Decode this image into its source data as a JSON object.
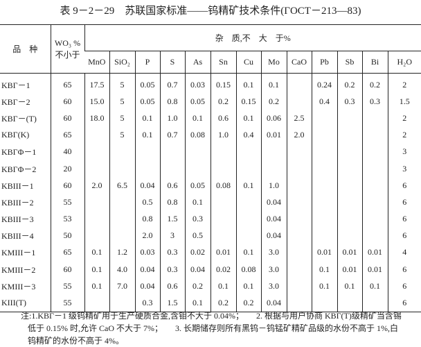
{
  "title": "表 9－2－29　苏联国家标准——钨精矿技术条件(ΓOCT－213—83)",
  "headers": {
    "variety": "品　种",
    "wo3_line1": "WO₃ %",
    "wo3_line2": "不小于",
    "impurities": "杂　质,不　大　于%",
    "columns": [
      "MnO",
      "SiO₂",
      "P",
      "S",
      "As",
      "Sn",
      "Cu",
      "Mo",
      "CaO",
      "Pb",
      "Sb",
      "Bi",
      "H₂O"
    ]
  },
  "rows": [
    {
      "name": "KBΓ－1",
      "wo3": "65",
      "v": [
        "17.5",
        "5",
        "0.05",
        "0.7",
        "0.03",
        "0.15",
        "0.1",
        "0.1",
        "",
        "0.24",
        "0.2",
        "0.2",
        "2"
      ]
    },
    {
      "name": "KBΓ－2",
      "wo3": "60",
      "v": [
        "15.0",
        "5",
        "0.05",
        "0.8",
        "0.05",
        "0.2",
        "0.15",
        "0.2",
        "",
        "0.4",
        "0.3",
        "0.3",
        "1.5"
      ]
    },
    {
      "name": "KBΓ－(T)",
      "wo3": "60",
      "v": [
        "18.0",
        "5",
        "0.1",
        "1.0",
        "0.1",
        "0.6",
        "0.1",
        "0.06",
        "2.5",
        "",
        "",
        "",
        "2"
      ]
    },
    {
      "name": "KBΓ(K)",
      "wo3": "65",
      "v": [
        "",
        "5",
        "0.1",
        "0.7",
        "0.08",
        "1.0",
        "0.4",
        "0.01",
        "2.0",
        "",
        "",
        "",
        "2"
      ]
    },
    {
      "name": "KBΓΦ－1",
      "wo3": "40",
      "v": [
        "",
        "",
        "",
        "",
        "",
        "",
        "",
        "",
        "",
        "",
        "",
        "",
        "3"
      ]
    },
    {
      "name": "KBΓΦ－2",
      "wo3": "20",
      "v": [
        "",
        "",
        "",
        "",
        "",
        "",
        "",
        "",
        "",
        "",
        "",
        "",
        "3"
      ]
    },
    {
      "name": "KBIII－1",
      "wo3": "60",
      "v": [
        "2.0",
        "6.5",
        "0.04",
        "0.6",
        "0.05",
        "0.08",
        "0.1",
        "1.0",
        "",
        "",
        "",
        "",
        "6"
      ]
    },
    {
      "name": "KBIII－2",
      "wo3": "55",
      "v": [
        "",
        "",
        "0.5",
        "0.8",
        "0.1",
        "",
        "",
        "0.04",
        "",
        "",
        "",
        "",
        "6"
      ]
    },
    {
      "name": "KBIII－3",
      "wo3": "53",
      "v": [
        "",
        "",
        "0.8",
        "1.5",
        "0.3",
        "",
        "",
        "0.04",
        "",
        "",
        "",
        "",
        "6"
      ]
    },
    {
      "name": "KBIII－4",
      "wo3": "50",
      "v": [
        "",
        "",
        "2.0",
        "3",
        "0.5",
        "",
        "",
        "0.04",
        "",
        "",
        "",
        "",
        "6"
      ]
    },
    {
      "name": "KMIII－1",
      "wo3": "65",
      "v": [
        "0.1",
        "1.2",
        "0.03",
        "0.3",
        "0.02",
        "0.01",
        "0.1",
        "3.0",
        "",
        "0.01",
        "0.01",
        "0.01",
        "4"
      ]
    },
    {
      "name": "KMIII－2",
      "wo3": "60",
      "v": [
        "0.1",
        "4.0",
        "0.04",
        "0.3",
        "0.04",
        "0.02",
        "0.08",
        "3.0",
        "",
        "0.1",
        "0.01",
        "0.01",
        "6"
      ]
    },
    {
      "name": "KMIII－3",
      "wo3": "55",
      "v": [
        "0.1",
        "7.0",
        "0.04",
        "0.6",
        "0.2",
        "0.1",
        "0.1",
        "3.0",
        "",
        "0.1",
        "0.1",
        "0.1",
        "6"
      ]
    },
    {
      "name": "KIII(T)",
      "wo3": "55",
      "v": [
        "",
        "",
        "0.3",
        "1.5",
        "0.1",
        "0.2",
        "0.2",
        "0.04",
        "",
        "",
        "",
        "",
        "6"
      ]
    }
  ],
  "notes": [
    "注:1.KBΓ－1 级钨精矿用于生产硬质合金,含钼不大于 0.04%；　　2. 根据与用户协商 KBΓ(T)级精矿当含锡",
    "低于 0.15% 时,允许 CaO 不大于 7%；　　3. 长期储存则所有黑钨－钨锰矿精矿品级的水份不高于 1%,白",
    "钨精矿的水份不高于 4%。"
  ]
}
